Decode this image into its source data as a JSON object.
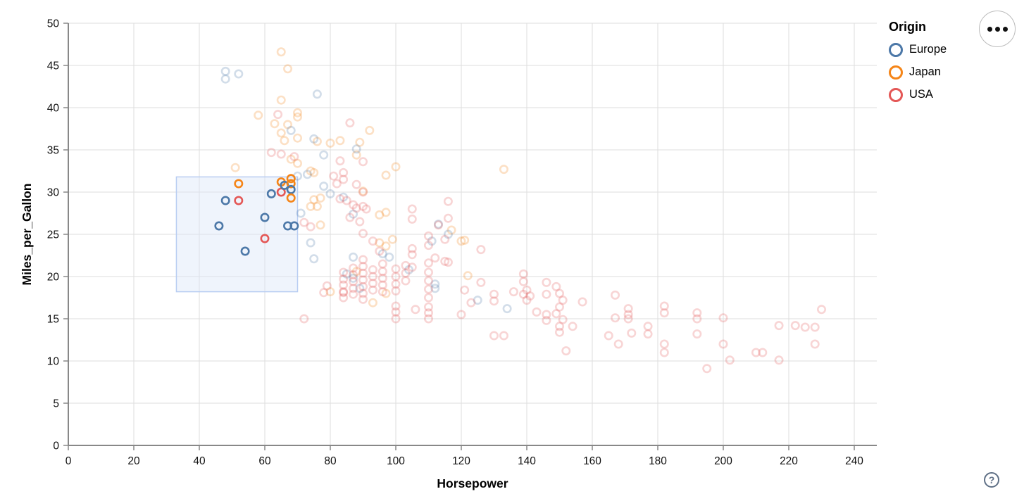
{
  "controls": {
    "menu_button": "options-menu",
    "help_label": "?"
  },
  "chart_data": {
    "type": "scatter",
    "title": "",
    "xlabel": "Horsepower",
    "ylabel": "Miles_per_Gallon",
    "xlim": [
      0,
      240
    ],
    "ylim": [
      0,
      50
    ],
    "x_ticks": [
      0,
      20,
      40,
      60,
      80,
      100,
      120,
      140,
      160,
      180,
      200,
      220,
      240
    ],
    "y_ticks": [
      0,
      5,
      10,
      15,
      20,
      25,
      30,
      35,
      40,
      45,
      50
    ],
    "grid": true,
    "legend": {
      "title": "Origin",
      "position": "top-right",
      "entries": [
        {
          "label": "Europe",
          "code": "E",
          "color": "#4c78a8"
        },
        {
          "label": "Japan",
          "code": "J",
          "color": "#f58518"
        },
        {
          "label": "USA",
          "code": "U",
          "color": "#e45756"
        }
      ]
    },
    "colors": {
      "E": "#4c78a8",
      "J": "#f58518",
      "U": "#e45756"
    },
    "style": {
      "grid_color": "#dddddd",
      "axis_color": "#888888",
      "label_color": "#111111",
      "faded_opacity": 0.25,
      "point_radius": 5.2,
      "point_stroke_width": 2.6
    },
    "brush": {
      "x0": 33,
      "x1": 70,
      "y0": 18.2,
      "y1": 31.8,
      "fill": "#dbe7f8",
      "fill_opacity": 0.45,
      "stroke": "#b8cdf2"
    },
    "points_format": [
      "horsepower",
      "miles_per_gallon",
      "origin_code",
      "selected"
    ],
    "points": [
      [
        52,
        31,
        "J",
        1
      ],
      [
        48,
        29,
        "E",
        1
      ],
      [
        52,
        29,
        "U",
        1
      ],
      [
        46,
        26,
        "E",
        1
      ],
      [
        60,
        27,
        "E",
        1
      ],
      [
        60,
        24.5,
        "U",
        1
      ],
      [
        54,
        23,
        "E",
        1
      ],
      [
        62,
        29.8,
        "E",
        1
      ],
      [
        65,
        30,
        "U",
        1
      ],
      [
        65,
        31.2,
        "J",
        1
      ],
      [
        66,
        30.8,
        "E",
        1
      ],
      [
        68,
        31.6,
        "J",
        1
      ],
      [
        68,
        31,
        "J",
        1
      ],
      [
        68,
        30.3,
        "E",
        1
      ],
      [
        68,
        29.3,
        "J",
        1
      ],
      [
        67,
        26,
        "E",
        1
      ],
      [
        69,
        26,
        "E",
        1
      ],
      [
        65,
        46.6,
        "J",
        0
      ],
      [
        67,
        44.6,
        "J",
        0
      ],
      [
        65,
        40.9,
        "J",
        0
      ],
      [
        70,
        39.4,
        "J",
        0
      ],
      [
        58,
        39.1,
        "J",
        0
      ],
      [
        70,
        38.9,
        "J",
        0
      ],
      [
        63,
        38.1,
        "J",
        0
      ],
      [
        67,
        38,
        "J",
        0
      ],
      [
        92,
        37.3,
        "J",
        0
      ],
      [
        65,
        37,
        "J",
        0
      ],
      [
        66,
        36.1,
        "J",
        0
      ],
      [
        70,
        36.4,
        "J",
        0
      ],
      [
        76,
        36,
        "J",
        0
      ],
      [
        80,
        35.8,
        "J",
        0
      ],
      [
        83,
        36.1,
        "J",
        0
      ],
      [
        89,
        35.9,
        "J",
        0
      ],
      [
        88,
        34.4,
        "J",
        0
      ],
      [
        68,
        33.9,
        "J",
        0
      ],
      [
        70,
        33.4,
        "J",
        0
      ],
      [
        51,
        32.9,
        "J",
        0
      ],
      [
        100,
        33,
        "J",
        0
      ],
      [
        97,
        32,
        "J",
        0
      ],
      [
        133,
        32.7,
        "J",
        0
      ],
      [
        74,
        32.5,
        "J",
        0
      ],
      [
        75,
        32.3,
        "J",
        0
      ],
      [
        90,
        30.1,
        "J",
        0
      ],
      [
        75,
        29.1,
        "J",
        0
      ],
      [
        77,
        29.3,
        "J",
        0
      ],
      [
        74,
        28.3,
        "J",
        0
      ],
      [
        76,
        28.3,
        "J",
        0
      ],
      [
        97,
        27.6,
        "J",
        0
      ],
      [
        95,
        27.3,
        "J",
        0
      ],
      [
        77,
        26.1,
        "J",
        0
      ],
      [
        117,
        25.5,
        "J",
        0
      ],
      [
        121,
        24.3,
        "J",
        0
      ],
      [
        95,
        24,
        "J",
        0
      ],
      [
        97,
        23.6,
        "J",
        0
      ],
      [
        99,
        24.4,
        "J",
        0
      ],
      [
        120,
        24.2,
        "J",
        0
      ],
      [
        122,
        20.1,
        "J",
        0
      ],
      [
        88,
        20.6,
        "J",
        0
      ],
      [
        97,
        18,
        "J",
        0
      ],
      [
        93,
        16.9,
        "J",
        0
      ],
      [
        80,
        18.2,
        "J",
        0
      ],
      [
        48,
        44.3,
        "E",
        0
      ],
      [
        52,
        44,
        "E",
        0
      ],
      [
        48,
        43.4,
        "E",
        0
      ],
      [
        76,
        41.6,
        "E",
        0
      ],
      [
        68,
        37.3,
        "E",
        0
      ],
      [
        75,
        36.3,
        "E",
        0
      ],
      [
        78,
        34.4,
        "E",
        0
      ],
      [
        88,
        35.1,
        "E",
        0
      ],
      [
        70,
        31.9,
        "E",
        0
      ],
      [
        73,
        32.1,
        "E",
        0
      ],
      [
        78,
        30.7,
        "E",
        0
      ],
      [
        80,
        29.8,
        "E",
        0
      ],
      [
        84,
        29.4,
        "E",
        0
      ],
      [
        71,
        27.5,
        "E",
        0
      ],
      [
        87,
        27.4,
        "E",
        0
      ],
      [
        113,
        26.2,
        "E",
        0
      ],
      [
        116,
        25,
        "E",
        0
      ],
      [
        111,
        24.2,
        "E",
        0
      ],
      [
        74,
        24,
        "E",
        0
      ],
      [
        87,
        22.3,
        "E",
        0
      ],
      [
        96,
        22.7,
        "E",
        0
      ],
      [
        98,
        22.3,
        "E",
        0
      ],
      [
        75,
        22.1,
        "E",
        0
      ],
      [
        85,
        20.3,
        "E",
        0
      ],
      [
        104,
        20.8,
        "E",
        0
      ],
      [
        87,
        19.8,
        "E",
        0
      ],
      [
        89,
        18.6,
        "E",
        0
      ],
      [
        112,
        19.1,
        "E",
        0
      ],
      [
        112,
        18.6,
        "E",
        0
      ],
      [
        125,
        17.2,
        "E",
        0
      ],
      [
        134,
        16.2,
        "E",
        0
      ],
      [
        64,
        39.2,
        "U",
        0
      ],
      [
        86,
        38.2,
        "U",
        0
      ],
      [
        62,
        34.7,
        "U",
        0
      ],
      [
        65,
        34.5,
        "U",
        0
      ],
      [
        69,
        34.2,
        "U",
        0
      ],
      [
        83,
        33.7,
        "U",
        0
      ],
      [
        90,
        33.6,
        "U",
        0
      ],
      [
        84,
        32.3,
        "U",
        0
      ],
      [
        81,
        31.9,
        "U",
        0
      ],
      [
        84,
        31.5,
        "U",
        0
      ],
      [
        82,
        31,
        "U",
        0
      ],
      [
        88,
        30.9,
        "U",
        0
      ],
      [
        90,
        30,
        "U",
        0
      ],
      [
        85,
        29,
        "U",
        0
      ],
      [
        83,
        29.2,
        "U",
        0
      ],
      [
        87,
        28.5,
        "U",
        0
      ],
      [
        90,
        28.3,
        "U",
        0
      ],
      [
        88,
        28.1,
        "U",
        0
      ],
      [
        91,
        28,
        "U",
        0
      ],
      [
        116,
        28.9,
        "U",
        0
      ],
      [
        105,
        28,
        "U",
        0
      ],
      [
        86,
        27,
        "U",
        0
      ],
      [
        105,
        26.8,
        "U",
        0
      ],
      [
        113,
        26.1,
        "U",
        0
      ],
      [
        116,
        26.9,
        "U",
        0
      ],
      [
        89,
        26.5,
        "U",
        0
      ],
      [
        72,
        26.4,
        "U",
        0
      ],
      [
        74,
        25.9,
        "U",
        0
      ],
      [
        90,
        25.1,
        "U",
        0
      ],
      [
        115,
        24.4,
        "U",
        0
      ],
      [
        93,
        24.2,
        "U",
        0
      ],
      [
        95,
        23,
        "U",
        0
      ],
      [
        105,
        23.3,
        "U",
        0
      ],
      [
        126,
        23.2,
        "U",
        0
      ],
      [
        105,
        22.6,
        "U",
        0
      ],
      [
        112,
        22.2,
        "U",
        0
      ],
      [
        115,
        21.8,
        "U",
        0
      ],
      [
        116,
        21.7,
        "U",
        0
      ],
      [
        105,
        21.1,
        "U",
        0
      ],
      [
        110,
        24.8,
        "U",
        0
      ],
      [
        110,
        23.7,
        "U",
        0
      ],
      [
        110,
        21.6,
        "U",
        0
      ],
      [
        110,
        20.5,
        "U",
        0
      ],
      [
        110,
        19.5,
        "U",
        0
      ],
      [
        110,
        18.5,
        "U",
        0
      ],
      [
        110,
        17.5,
        "U",
        0
      ],
      [
        110,
        16.4,
        "U",
        0
      ],
      [
        110,
        15.7,
        "U",
        0
      ],
      [
        110,
        15,
        "U",
        0
      ],
      [
        84,
        20.5,
        "U",
        0
      ],
      [
        84,
        19.7,
        "U",
        0
      ],
      [
        84,
        19,
        "U",
        0
      ],
      [
        84,
        18.2,
        "U",
        0
      ],
      [
        84,
        18.1,
        "U",
        0
      ],
      [
        84,
        17.5,
        "U",
        0
      ],
      [
        87,
        21,
        "U",
        0
      ],
      [
        87,
        20.2,
        "U",
        0
      ],
      [
        87,
        19.4,
        "U",
        0
      ],
      [
        87,
        18.6,
        "U",
        0
      ],
      [
        87,
        17.9,
        "U",
        0
      ],
      [
        90,
        22,
        "U",
        0
      ],
      [
        90,
        21.2,
        "U",
        0
      ],
      [
        90,
        20.4,
        "U",
        0
      ],
      [
        90,
        19.6,
        "U",
        0
      ],
      [
        90,
        18.8,
        "U",
        0
      ],
      [
        90,
        18,
        "U",
        0
      ],
      [
        90,
        17.3,
        "U",
        0
      ],
      [
        93,
        20.8,
        "U",
        0
      ],
      [
        93,
        20,
        "U",
        0
      ],
      [
        93,
        19.2,
        "U",
        0
      ],
      [
        93,
        18.4,
        "U",
        0
      ],
      [
        96,
        21.5,
        "U",
        0
      ],
      [
        96,
        20.6,
        "U",
        0
      ],
      [
        96,
        19.8,
        "U",
        0
      ],
      [
        96,
        19,
        "U",
        0
      ],
      [
        96,
        18.2,
        "U",
        0
      ],
      [
        100,
        20.9,
        "U",
        0
      ],
      [
        100,
        20,
        "U",
        0
      ],
      [
        100,
        19.1,
        "U",
        0
      ],
      [
        100,
        18.3,
        "U",
        0
      ],
      [
        100,
        16.5,
        "U",
        0
      ],
      [
        100,
        15.8,
        "U",
        0
      ],
      [
        100,
        15,
        "U",
        0
      ],
      [
        103,
        21.3,
        "U",
        0
      ],
      [
        103,
        20.4,
        "U",
        0
      ],
      [
        103,
        19.5,
        "U",
        0
      ],
      [
        106,
        16.1,
        "U",
        0
      ],
      [
        79,
        18.9,
        "U",
        0
      ],
      [
        78,
        18.1,
        "U",
        0
      ],
      [
        72,
        15,
        "U",
        0
      ],
      [
        120,
        15.5,
        "U",
        0
      ],
      [
        121,
        18.4,
        "U",
        0
      ],
      [
        123,
        16.9,
        "U",
        0
      ],
      [
        126,
        19.3,
        "U",
        0
      ],
      [
        130,
        17.9,
        "U",
        0
      ],
      [
        130,
        17.1,
        "U",
        0
      ],
      [
        136,
        18.2,
        "U",
        0
      ],
      [
        139,
        20.3,
        "U",
        0
      ],
      [
        139,
        19.4,
        "U",
        0
      ],
      [
        140,
        18.4,
        "U",
        0
      ],
      [
        139,
        17.9,
        "U",
        0
      ],
      [
        141,
        17.7,
        "U",
        0
      ],
      [
        140,
        17.2,
        "U",
        0
      ],
      [
        143,
        15.8,
        "U",
        0
      ],
      [
        146,
        19.3,
        "U",
        0
      ],
      [
        146,
        17.9,
        "U",
        0
      ],
      [
        146,
        15.5,
        "U",
        0
      ],
      [
        146,
        14.8,
        "U",
        0
      ],
      [
        149,
        18.8,
        "U",
        0
      ],
      [
        150,
        18,
        "U",
        0
      ],
      [
        151,
        17.2,
        "U",
        0
      ],
      [
        150,
        16.4,
        "U",
        0
      ],
      [
        149,
        15.6,
        "U",
        0
      ],
      [
        151,
        14.9,
        "U",
        0
      ],
      [
        150,
        14.1,
        "U",
        0
      ],
      [
        150,
        13.4,
        "U",
        0
      ],
      [
        154,
        14.1,
        "U",
        0
      ],
      [
        157,
        17,
        "U",
        0
      ],
      [
        152,
        11.2,
        "U",
        0
      ],
      [
        130,
        13,
        "U",
        0
      ],
      [
        133,
        13,
        "U",
        0
      ],
      [
        167,
        17.8,
        "U",
        0
      ],
      [
        171,
        16.2,
        "U",
        0
      ],
      [
        171,
        15.5,
        "U",
        0
      ],
      [
        171,
        15,
        "U",
        0
      ],
      [
        167,
        15.1,
        "U",
        0
      ],
      [
        165,
        13,
        "U",
        0
      ],
      [
        168,
        12,
        "U",
        0
      ],
      [
        172,
        13.3,
        "U",
        0
      ],
      [
        177,
        14.1,
        "U",
        0
      ],
      [
        177,
        13.2,
        "U",
        0
      ],
      [
        182,
        16.5,
        "U",
        0
      ],
      [
        182,
        15.7,
        "U",
        0
      ],
      [
        182,
        12,
        "U",
        0
      ],
      [
        182,
        11,
        "U",
        0
      ],
      [
        192,
        15.7,
        "U",
        0
      ],
      [
        192,
        15,
        "U",
        0
      ],
      [
        192,
        13.2,
        "U",
        0
      ],
      [
        200,
        15.1,
        "U",
        0
      ],
      [
        200,
        12,
        "U",
        0
      ],
      [
        202,
        10.1,
        "U",
        0
      ],
      [
        210,
        11,
        "U",
        0
      ],
      [
        212,
        11,
        "U",
        0
      ],
      [
        195,
        9.1,
        "U",
        0
      ],
      [
        230,
        16.1,
        "U",
        0
      ],
      [
        217,
        14.2,
        "U",
        0
      ],
      [
        222,
        14.2,
        "U",
        0
      ],
      [
        225,
        14,
        "U",
        0
      ],
      [
        228,
        14,
        "U",
        0
      ],
      [
        228,
        12,
        "U",
        0
      ],
      [
        217,
        10.1,
        "U",
        0
      ]
    ]
  }
}
